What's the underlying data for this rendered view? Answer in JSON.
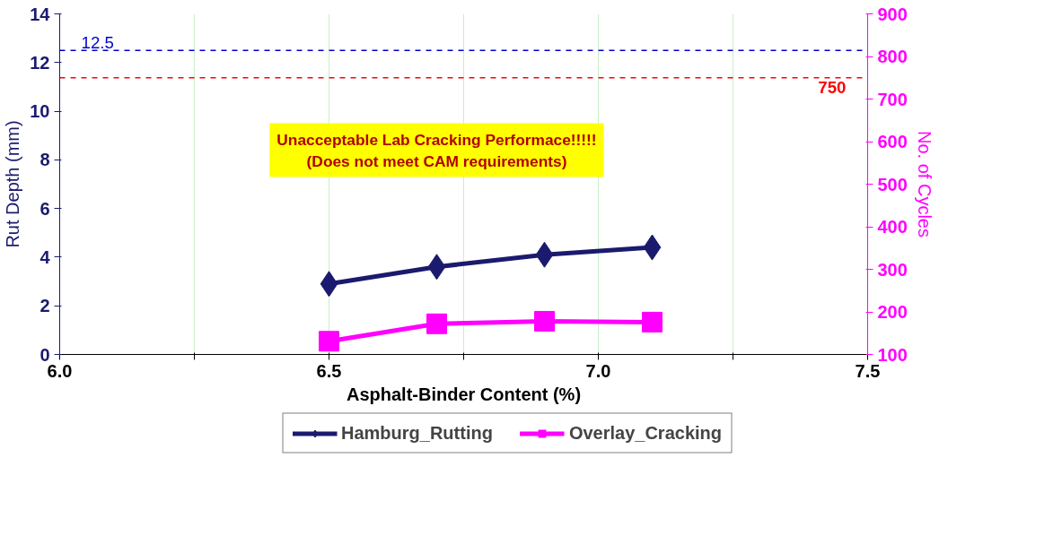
{
  "chart_data": {
    "type": "line",
    "xlabel": "Asphalt-Binder Content (%)",
    "ylabel": "Rut Depth (mm)",
    "y2label": "No. of Cycles",
    "xlim": [
      6.0,
      7.5
    ],
    "xticks": [
      {
        "value": 6.0,
        "label": "6.0"
      },
      {
        "value": 6.25,
        "label": null
      },
      {
        "value": 6.5,
        "label": "6.5"
      },
      {
        "value": 6.75,
        "label": null
      },
      {
        "value": 7.0,
        "label": "7.0"
      },
      {
        "value": 7.25,
        "label": null
      },
      {
        "value": 7.5,
        "label": "7.5"
      }
    ],
    "ylim": [
      0,
      14
    ],
    "yticks": [
      0,
      2,
      4,
      6,
      8,
      10,
      12,
      14
    ],
    "y2lim": [
      100,
      900
    ],
    "y2ticks": [
      100,
      200,
      300,
      400,
      500,
      600,
      700,
      800,
      900
    ],
    "x": [
      6.5,
      6.7,
      6.9,
      7.1
    ],
    "series": [
      {
        "name": "Hamburg_Rutting",
        "color": "#1a1a6e",
        "marker": "diamond",
        "values": [
          2.9,
          3.6,
          4.1,
          4.4
        ]
      },
      {
        "name": "Overlay_Cracking",
        "color": "#ff00ff",
        "marker": "square",
        "axis": "y2",
        "values": [
          131,
          172,
          178,
          176
        ]
      }
    ],
    "ref_lines": [
      {
        "axis": "y",
        "value": 12.5,
        "label": "12.5",
        "color": "#0000cc",
        "line_style": "dashed"
      },
      {
        "axis": "y2",
        "value": 750,
        "label": "750",
        "color": "#ff0000",
        "line_style": "dashed"
      }
    ],
    "annotations": [
      "Unacceptable Lab Cracking Performace!!!!!\n(Does not meet CAM requirements)"
    ],
    "grid": "x",
    "legend": "bottom"
  }
}
